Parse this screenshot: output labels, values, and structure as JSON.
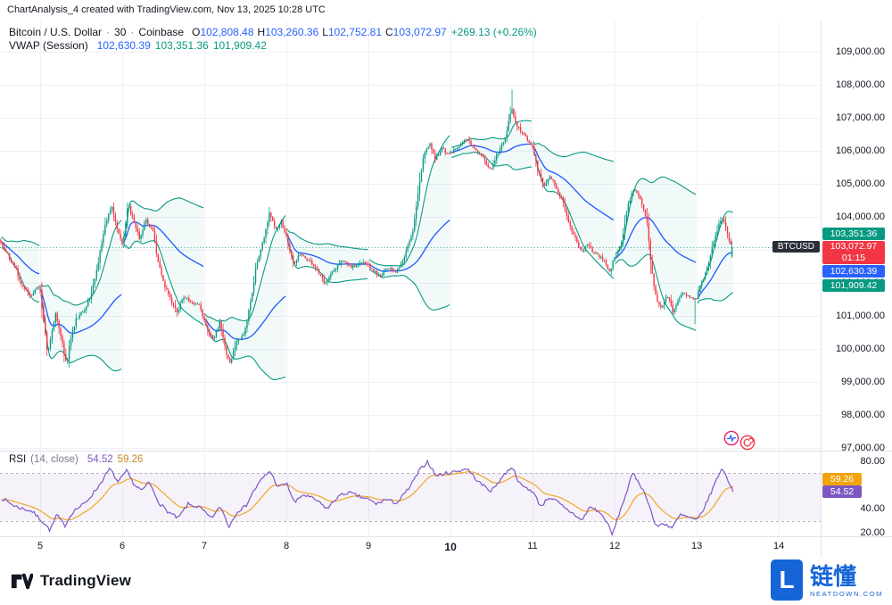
{
  "meta": {
    "title_bar": "ChartAnalysis_4 created with TradingView.com, Nov 13, 2025 10:28 UTC"
  },
  "legend": {
    "symbol": "Bitcoin / U.S. Dollar",
    "separator": "·",
    "interval": "30",
    "exchange": "Coinbase",
    "value_color": "#2962ff",
    "change_color": "#089981",
    "ohlc": [
      {
        "label": "O",
        "value": "102,808.48"
      },
      {
        "label": "H",
        "value": "103,260.36"
      },
      {
        "label": "L",
        "value": "102,752.81"
      },
      {
        "label": "C",
        "value": "103,072.97"
      }
    ],
    "change": "+269.13 (+0.26%)",
    "indicator": {
      "name": "VWAP (Session)",
      "values": [
        {
          "value": "102,630.39",
          "color": "#2962ff"
        },
        {
          "value": "103,351.36",
          "color": "#089981"
        },
        {
          "value": "101,909.42",
          "color": "#089981"
        }
      ]
    }
  },
  "rsi": {
    "name": "RSI",
    "params": "(14, close)",
    "values": [
      {
        "value": "54.52",
        "color": "#7e57c2"
      },
      {
        "value": "59.26",
        "color": "#bf8b20"
      }
    ]
  },
  "price_axis": {
    "ticks": [
      {
        "label": "109,000.00",
        "value": 109000
      },
      {
        "label": "108,000.00",
        "value": 108000
      },
      {
        "label": "107,000.00",
        "value": 107000
      },
      {
        "label": "106,000.00",
        "value": 106000
      },
      {
        "label": "105,000.00",
        "value": 105000
      },
      {
        "label": "104,000.00",
        "value": 104000
      },
      {
        "label": "103,000.00",
        "value": 103000
      },
      {
        "label": "102,000.00",
        "value": 102000
      },
      {
        "label": "101,000.00",
        "value": 101000
      },
      {
        "label": "100,000.00",
        "value": 100000
      },
      {
        "label": "99,000.00",
        "value": 99000
      },
      {
        "label": "98,000.00",
        "value": 98000
      },
      {
        "label": "97,000.00",
        "value": 97000
      }
    ],
    "badges": [
      {
        "text": "103,351.36",
        "value": 103351.36,
        "bg": "#089981",
        "role": "vwap-upper-band"
      },
      {
        "text": "103,072.97",
        "value": 103072.97,
        "bg": "#f23645",
        "role": "current-price",
        "symbol": "BTCUSD",
        "countdown": "01:15"
      },
      {
        "text": "102,630.39",
        "value": 102630.39,
        "bg": "#2962ff",
        "role": "vwap"
      },
      {
        "text": "101,909.42",
        "value": 101909.42,
        "bg": "#089981",
        "role": "vwap-lower-band"
      }
    ]
  },
  "rsi_axis": {
    "ticks": [
      {
        "label": "80.00",
        "value": 80
      },
      {
        "label": "40.00",
        "value": 40
      },
      {
        "label": "20.00",
        "value": 20
      }
    ],
    "badges": [
      {
        "text": "59.26",
        "value": 59.26,
        "bg": "#f0a30a",
        "role": "rsi-ma"
      },
      {
        "text": "54.52",
        "value": 54.52,
        "bg": "#7e57c2",
        "role": "rsi"
      }
    ]
  },
  "time_axis": {
    "labels": [
      {
        "label": "5",
        "day": 5
      },
      {
        "label": "6",
        "day": 6
      },
      {
        "label": "7",
        "day": 7
      },
      {
        "label": "8",
        "day": 8
      },
      {
        "label": "9",
        "day": 9
      },
      {
        "label": "10",
        "day": 10,
        "emphasis": true
      },
      {
        "label": "11",
        "day": 11
      },
      {
        "label": "12",
        "day": 12
      },
      {
        "label": "13",
        "day": 13
      },
      {
        "label": "14",
        "day": 14
      }
    ]
  },
  "footer": {
    "tradingview_label": "TradingView",
    "watermark": {
      "brand": "链懂",
      "domain": "NEATDOWN.COM"
    }
  },
  "chart_data": [
    {
      "type": "candlestick",
      "title": "Bitcoin / U.S. Dollar",
      "symbol": "BTCUSD",
      "interval_minutes": 30,
      "exchange": "Coinbase",
      "x_unit": "day of November 2025",
      "x_ticks": [
        5,
        6,
        7,
        8,
        9,
        10,
        11,
        12,
        13,
        14
      ],
      "x_range": [
        4.51,
        14.51
      ],
      "ylim": [
        96550,
        109450
      ],
      "y_tick_step": 1000,
      "grid": true,
      "current_bar": {
        "o": 102808.48,
        "h": 103260.36,
        "l": 102752.81,
        "c": 103072.97,
        "change": 269.13,
        "change_pct": 0.26
      },
      "vwap_session": {
        "vwap": 102630.39,
        "upper": 103351.36,
        "lower": 101909.42
      },
      "current_price": 103072.97,
      "colors": {
        "up": "#089981",
        "down": "#f23645",
        "vwap": "#2962ff",
        "band": "#089981",
        "band_fill": "rgba(8,153,129,0.05)",
        "grid": "#eef0f6",
        "separator": "#e0e3eb",
        "price_line": "rgba(8,153,129,0.8)"
      },
      "close_path_anchors": [
        [
          4.51,
          103300
        ],
        [
          4.6,
          102900
        ],
        [
          4.7,
          102500
        ],
        [
          4.8,
          101850
        ],
        [
          4.9,
          101600
        ],
        [
          5.0,
          101950
        ],
        [
          5.05,
          100900
        ],
        [
          5.1,
          99900
        ],
        [
          5.15,
          100450
        ],
        [
          5.2,
          101100
        ],
        [
          5.28,
          100150
        ],
        [
          5.33,
          99500
        ],
        [
          5.38,
          100300
        ],
        [
          5.45,
          100900
        ],
        [
          5.55,
          101200
        ],
        [
          5.62,
          101600
        ],
        [
          5.7,
          102400
        ],
        [
          5.8,
          103700
        ],
        [
          5.88,
          104300
        ],
        [
          5.95,
          103600
        ],
        [
          6.02,
          103150
        ],
        [
          6.08,
          104400
        ],
        [
          6.15,
          103850
        ],
        [
          6.22,
          103350
        ],
        [
          6.3,
          103900
        ],
        [
          6.38,
          103600
        ],
        [
          6.45,
          102600
        ],
        [
          6.52,
          101950
        ],
        [
          6.6,
          101500
        ],
        [
          6.68,
          101050
        ],
        [
          6.75,
          101600
        ],
        [
          6.85,
          101400
        ],
        [
          6.95,
          101300
        ],
        [
          7.05,
          100550
        ],
        [
          7.12,
          100250
        ],
        [
          7.2,
          100800
        ],
        [
          7.28,
          99850
        ],
        [
          7.33,
          99600
        ],
        [
          7.4,
          100250
        ],
        [
          7.5,
          100450
        ],
        [
          7.58,
          101500
        ],
        [
          7.65,
          102600
        ],
        [
          7.72,
          103200
        ],
        [
          7.8,
          104100
        ],
        [
          7.88,
          103600
        ],
        [
          7.95,
          103850
        ],
        [
          8.02,
          103300
        ],
        [
          8.1,
          102550
        ],
        [
          8.18,
          102900
        ],
        [
          8.28,
          102700
        ],
        [
          8.38,
          102400
        ],
        [
          8.48,
          101950
        ],
        [
          8.58,
          102350
        ],
        [
          8.68,
          102700
        ],
        [
          8.8,
          102500
        ],
        [
          8.95,
          102650
        ],
        [
          9.05,
          102400
        ],
        [
          9.15,
          102200
        ],
        [
          9.25,
          102450
        ],
        [
          9.35,
          102300
        ],
        [
          9.45,
          102800
        ],
        [
          9.55,
          103600
        ],
        [
          9.62,
          104800
        ],
        [
          9.68,
          105800
        ],
        [
          9.75,
          106250
        ],
        [
          9.82,
          105750
        ],
        [
          9.9,
          106050
        ],
        [
          10.0,
          105900
        ],
        [
          10.1,
          106100
        ],
        [
          10.2,
          106350
        ],
        [
          10.3,
          106100
        ],
        [
          10.4,
          105800
        ],
        [
          10.5,
          105450
        ],
        [
          10.58,
          105900
        ],
        [
          10.68,
          106400
        ],
        [
          10.75,
          107300
        ],
        [
          10.82,
          106750
        ],
        [
          10.9,
          106500
        ],
        [
          11.0,
          106200
        ],
        [
          11.08,
          105350
        ],
        [
          11.15,
          104900
        ],
        [
          11.22,
          105250
        ],
        [
          11.3,
          104900
        ],
        [
          11.38,
          104450
        ],
        [
          11.45,
          103850
        ],
        [
          11.52,
          103400
        ],
        [
          11.6,
          102950
        ],
        [
          11.68,
          103100
        ],
        [
          11.78,
          102900
        ],
        [
          11.88,
          102700
        ],
        [
          11.95,
          102350
        ],
        [
          12.02,
          102800
        ],
        [
          12.1,
          103300
        ],
        [
          12.18,
          104400
        ],
        [
          12.25,
          104900
        ],
        [
          12.32,
          104600
        ],
        [
          12.4,
          103900
        ],
        [
          12.46,
          102400
        ],
        [
          12.52,
          101500
        ],
        [
          12.58,
          101200
        ],
        [
          12.65,
          101650
        ],
        [
          12.72,
          101100
        ],
        [
          12.78,
          101450
        ],
        [
          12.85,
          101700
        ],
        [
          12.92,
          101600
        ],
        [
          13.0,
          101500
        ],
        [
          13.05,
          101900
        ],
        [
          13.12,
          102250
        ],
        [
          13.2,
          103100
        ],
        [
          13.28,
          103800
        ],
        [
          13.33,
          104000
        ],
        [
          13.38,
          103500
        ],
        [
          13.44,
          103072.97
        ]
      ],
      "spikes": [
        {
          "day": 10.75,
          "type": "high",
          "price": 107850
        },
        {
          "day": 12.98,
          "type": "low",
          "price": 100750
        }
      ]
    },
    {
      "type": "line",
      "title": "RSI (14, close)",
      "period": 14,
      "source": "close",
      "ylim": [
        13,
        87
      ],
      "y_ticks": [
        80,
        60,
        40,
        20
      ],
      "overbought": 70,
      "oversold": 30,
      "current": {
        "rsi": 54.52,
        "rsi_ma": 59.26
      },
      "colors": {
        "rsi": "#7e57c2",
        "ma": "#f5a623",
        "band_fill": "rgba(126,87,194,0.08)",
        "band_line": "rgba(120,123,134,0.55)"
      },
      "rsi_anchors": [
        [
          4.51,
          50
        ],
        [
          4.7,
          42
        ],
        [
          4.9,
          38
        ],
        [
          5.05,
          28
        ],
        [
          5.12,
          22
        ],
        [
          5.2,
          35
        ],
        [
          5.3,
          26
        ],
        [
          5.4,
          38
        ],
        [
          5.55,
          45
        ],
        [
          5.7,
          58
        ],
        [
          5.85,
          74
        ],
        [
          5.95,
          62
        ],
        [
          6.05,
          72
        ],
        [
          6.15,
          60
        ],
        [
          6.25,
          55
        ],
        [
          6.32,
          63
        ],
        [
          6.45,
          45
        ],
        [
          6.55,
          38
        ],
        [
          6.68,
          32
        ],
        [
          6.8,
          44
        ],
        [
          6.95,
          41
        ],
        [
          7.08,
          32
        ],
        [
          7.2,
          42
        ],
        [
          7.3,
          25
        ],
        [
          7.4,
          38
        ],
        [
          7.5,
          42
        ],
        [
          7.6,
          55
        ],
        [
          7.7,
          65
        ],
        [
          7.8,
          72
        ],
        [
          7.9,
          58
        ],
        [
          8.0,
          62
        ],
        [
          8.1,
          45
        ],
        [
          8.2,
          52
        ],
        [
          8.35,
          48
        ],
        [
          8.5,
          40
        ],
        [
          8.62,
          50
        ],
        [
          8.75,
          54
        ],
        [
          8.9,
          50
        ],
        [
          9.0,
          48
        ],
        [
          9.1,
          44
        ],
        [
          9.2,
          48
        ],
        [
          9.35,
          45
        ],
        [
          9.5,
          58
        ],
        [
          9.62,
          72
        ],
        [
          9.72,
          80
        ],
        [
          9.82,
          68
        ],
        [
          9.95,
          70
        ],
        [
          10.1,
          72
        ],
        [
          10.2,
          74
        ],
        [
          10.35,
          62
        ],
        [
          10.5,
          55
        ],
        [
          10.62,
          66
        ],
        [
          10.75,
          76
        ],
        [
          10.85,
          60
        ],
        [
          11.0,
          55
        ],
        [
          11.1,
          42
        ],
        [
          11.2,
          50
        ],
        [
          11.3,
          46
        ],
        [
          11.4,
          40
        ],
        [
          11.5,
          36
        ],
        [
          11.6,
          30
        ],
        [
          11.7,
          42
        ],
        [
          11.8,
          38
        ],
        [
          11.9,
          30
        ],
        [
          11.97,
          18
        ],
        [
          12.05,
          35
        ],
        [
          12.15,
          55
        ],
        [
          12.22,
          70
        ],
        [
          12.3,
          62
        ],
        [
          12.4,
          48
        ],
        [
          12.5,
          25
        ],
        [
          12.6,
          28
        ],
        [
          12.7,
          24
        ],
        [
          12.8,
          35
        ],
        [
          12.9,
          33
        ],
        [
          13.0,
          30
        ],
        [
          13.1,
          42
        ],
        [
          13.2,
          58
        ],
        [
          13.3,
          74
        ],
        [
          13.36,
          68
        ],
        [
          13.44,
          54.52
        ]
      ]
    }
  ]
}
